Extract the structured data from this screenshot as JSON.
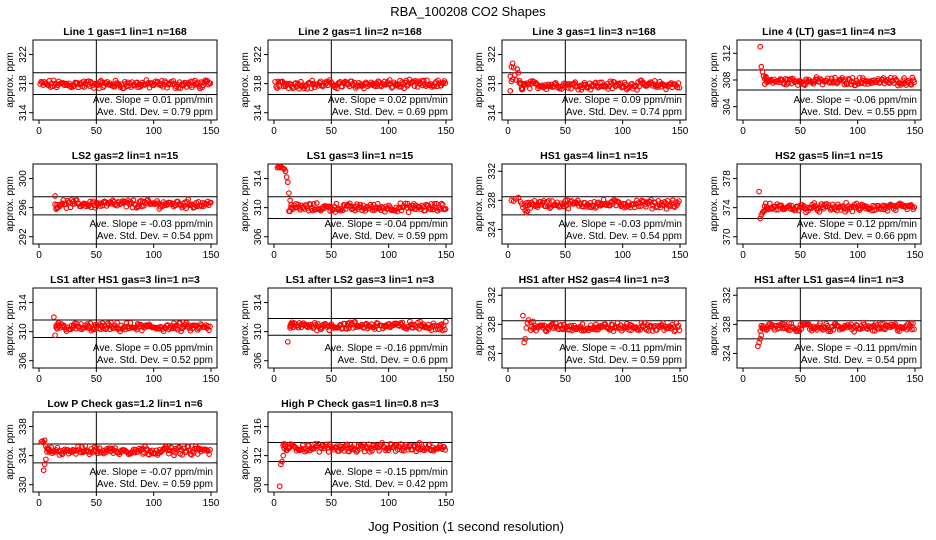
{
  "title": "RBA_100208  CO2 Shapes",
  "xlabel": "Jog Position (1 second resolution)",
  "ylabel": "approx. ppm",
  "slope_label": "Ave. Slope =",
  "slope_unit": "ppm/min",
  "std_label": "Ave. Std. Dev. =",
  "std_unit": "ppm",
  "point_color": "#ff0000",
  "chart_data": [
    {
      "type": "scatter",
      "title": "Line 1 gas=1 lin=1 n=168",
      "xlim": [
        0,
        150
      ],
      "xticks": [
        0,
        50,
        100,
        150
      ],
      "ylim": [
        313,
        324
      ],
      "yticks": [
        314,
        318,
        322
      ],
      "hlines": [
        319.5,
        316.5
      ],
      "vline": 50,
      "baseline": 317.9,
      "slope": "0.01",
      "std": "0.79",
      "lead": []
    },
    {
      "type": "scatter",
      "title": "Line 2 gas=1 lin=2 n=168",
      "xlim": [
        0,
        150
      ],
      "xticks": [
        0,
        50,
        100,
        150
      ],
      "ylim": [
        313,
        324
      ],
      "yticks": [
        314,
        318,
        322
      ],
      "hlines": [
        319.5,
        316.5
      ],
      "vline": 50,
      "baseline": 317.9,
      "slope": "0.02",
      "std": "0.69",
      "lead": []
    },
    {
      "type": "scatter",
      "title": "Line 3 gas=1 lin=3 n=168",
      "xlim": [
        0,
        150
      ],
      "xticks": [
        0,
        50,
        100,
        150
      ],
      "ylim": [
        313,
        324
      ],
      "yticks": [
        314,
        318,
        322
      ],
      "hlines": [
        319.5,
        316.5
      ],
      "vline": 50,
      "baseline": 317.8,
      "slope": "0.09",
      "std": "0.74",
      "lead": [
        [
          2,
          319
        ],
        [
          3,
          320.3
        ],
        [
          4,
          320.8
        ],
        [
          5,
          320.2
        ],
        [
          6,
          319.2
        ],
        [
          7,
          318.5
        ],
        [
          8,
          320
        ],
        [
          9,
          319.5
        ],
        [
          10,
          318.4
        ],
        [
          11,
          318
        ],
        [
          12,
          317.2
        ],
        [
          3,
          318.3
        ],
        [
          2,
          317
        ],
        [
          4,
          318.6
        ]
      ]
    },
    {
      "type": "scatter",
      "title": "Line 4 (LT) gas=1 lin=4 n=3",
      "xlim": [
        0,
        150
      ],
      "xticks": [
        0,
        50,
        100,
        150
      ],
      "ylim": [
        302,
        314
      ],
      "yticks": [
        304,
        308,
        312
      ],
      "hlines": [
        309.5,
        306.5
      ],
      "vline": 50,
      "baseline": 307.8,
      "slope": "-0.06",
      "std": "0.55",
      "lead": [
        [
          15,
          313
        ],
        [
          16,
          310
        ],
        [
          17,
          309.2
        ],
        [
          18,
          308.6
        ],
        [
          19,
          308.2
        ],
        [
          20,
          308.5
        ],
        [
          21,
          308
        ]
      ]
    },
    {
      "type": "scatter",
      "title": "LS2 gas=2 lin=1 n=15",
      "xlim": [
        0,
        150
      ],
      "xticks": [
        0,
        50,
        100,
        150
      ],
      "ylim": [
        291,
        302
      ],
      "yticks": [
        292,
        296,
        300
      ],
      "hlines": [
        297.5,
        295
      ],
      "vline": 50,
      "baseline": 296.5,
      "slope": "-0.03",
      "std": "0.54",
      "lead": [
        [
          14,
          297.6
        ],
        [
          15,
          295.8
        ],
        [
          16,
          296
        ]
      ]
    },
    {
      "type": "scatter",
      "title": "LS1 gas=3 lin=1 n=15",
      "xlim": [
        0,
        150
      ],
      "xticks": [
        0,
        50,
        100,
        150
      ],
      "ylim": [
        305,
        316
      ],
      "yticks": [
        306,
        310,
        314
      ],
      "hlines": [
        311.5,
        308.5
      ],
      "vline": 50,
      "baseline": 310.0,
      "slope": "-0.04",
      "std": "0.59",
      "lead": [
        [
          3,
          315.5
        ],
        [
          4,
          315.6
        ],
        [
          5,
          315.5
        ],
        [
          6,
          315.6
        ],
        [
          7,
          315.5
        ],
        [
          8,
          315.4
        ],
        [
          9,
          315.3
        ],
        [
          10,
          315
        ],
        [
          11,
          314.2
        ],
        [
          12,
          313.5
        ],
        [
          13,
          312
        ],
        [
          14,
          311
        ],
        [
          15,
          310.4
        ]
      ]
    },
    {
      "type": "scatter",
      "title": "HS1 gas=4 lin=1 n=15",
      "xlim": [
        0,
        150
      ],
      "xticks": [
        0,
        50,
        100,
        150
      ],
      "ylim": [
        322,
        333
      ],
      "yticks": [
        324,
        328,
        332
      ],
      "hlines": [
        328.5,
        326
      ],
      "vline": 50,
      "baseline": 327.5,
      "slope": "-0.03",
      "std": "0.54",
      "lead": [
        [
          3,
          328
        ],
        [
          5,
          327.9
        ],
        [
          7,
          328.2
        ],
        [
          9,
          328.4
        ],
        [
          11,
          327.8
        ],
        [
          13,
          327
        ],
        [
          15,
          326.6
        ],
        [
          16,
          326.3
        ],
        [
          17,
          326.5
        ],
        [
          12,
          327.5
        ]
      ]
    },
    {
      "type": "scatter",
      "title": "HS2 gas=5 lin=1 n=15",
      "xlim": [
        0,
        150
      ],
      "xticks": [
        0,
        50,
        100,
        150
      ],
      "ylim": [
        369,
        380
      ],
      "yticks": [
        370,
        374,
        378
      ],
      "hlines": [
        375.5,
        372.5
      ],
      "vline": 50,
      "baseline": 374.0,
      "slope": "0.12",
      "std": "0.66",
      "lead": [
        [
          14,
          376.2
        ],
        [
          15,
          372.5
        ],
        [
          16,
          373
        ],
        [
          17,
          373.3
        ],
        [
          18,
          373.5
        ],
        [
          19,
          373.6
        ],
        [
          20,
          373.8
        ]
      ]
    },
    {
      "type": "scatter",
      "title": "LS1 after HS1 gas=3 lin=1 n=3",
      "xlim": [
        0,
        150
      ],
      "xticks": [
        0,
        50,
        100,
        150
      ],
      "ylim": [
        305,
        316
      ],
      "yticks": [
        306,
        310,
        314
      ],
      "hlines": [
        311.6,
        309.2
      ],
      "vline": 50,
      "baseline": 310.6,
      "slope": "0.05",
      "std": "0.52",
      "lead": [
        [
          13,
          312
        ],
        [
          14,
          309.5
        ],
        [
          15,
          310.8
        ],
        [
          16,
          311
        ],
        [
          17,
          311.2
        ]
      ]
    },
    {
      "type": "scatter",
      "title": "LS1 after LS2 gas=3 lin=1 n=3",
      "xlim": [
        0,
        150
      ],
      "xticks": [
        0,
        50,
        100,
        150
      ],
      "ylim": [
        305,
        316
      ],
      "yticks": [
        306,
        310,
        314
      ],
      "hlines": [
        311.8,
        309.5
      ],
      "vline": 50,
      "baseline": 310.8,
      "slope": "-0.16",
      "std": "0.6",
      "lead": [
        [
          12,
          308.6
        ],
        [
          14,
          310.5
        ],
        [
          15,
          310.8
        ],
        [
          16,
          311
        ]
      ]
    },
    {
      "type": "scatter",
      "title": "HS1 after HS2 gas=4 lin=1 n=3",
      "xlim": [
        0,
        150
      ],
      "xticks": [
        0,
        50,
        100,
        150
      ],
      "ylim": [
        322,
        333
      ],
      "yticks": [
        324,
        328,
        332
      ],
      "hlines": [
        328.5,
        326
      ],
      "vline": 50,
      "baseline": 327.6,
      "slope": "-0.11",
      "std": "0.59",
      "lead": [
        [
          13,
          329.2
        ],
        [
          14,
          325.5
        ],
        [
          15,
          326
        ],
        [
          16,
          327.5
        ],
        [
          17,
          328.2
        ],
        [
          18,
          328.6
        ],
        [
          20,
          328.3
        ],
        [
          22,
          328.4
        ]
      ]
    },
    {
      "type": "scatter",
      "title": "HS1 after LS1 gas=4 lin=1 n=3",
      "xlim": [
        0,
        150
      ],
      "xticks": [
        0,
        50,
        100,
        150
      ],
      "ylim": [
        322,
        333
      ],
      "yticks": [
        324,
        328,
        332
      ],
      "hlines": [
        328.5,
        326
      ],
      "vline": 50,
      "baseline": 327.6,
      "slope": "-0.11",
      "std": "0.54",
      "lead": [
        [
          13,
          325
        ],
        [
          14,
          325.5
        ],
        [
          15,
          326
        ],
        [
          16,
          326.5
        ],
        [
          17,
          327.4
        ]
      ]
    },
    {
      "type": "scatter",
      "title": "Low P Check gas=1.2 lin=1 n=6",
      "xlim": [
        0,
        150
      ],
      "xticks": [
        0,
        50,
        100,
        150
      ],
      "ylim": [
        329,
        340
      ],
      "yticks": [
        330,
        334,
        338
      ],
      "hlines": [
        335.6,
        333
      ],
      "vline": 50,
      "baseline": 334.7,
      "slope": "-0.07",
      "std": "0.59",
      "lead": [
        [
          2,
          335.9
        ],
        [
          3,
          336
        ],
        [
          4,
          335.8
        ],
        [
          5,
          336.1
        ],
        [
          6,
          335.3
        ],
        [
          7,
          335
        ],
        [
          4,
          332
        ],
        [
          5,
          332.8
        ],
        [
          6,
          333.5
        ],
        [
          8,
          334.8
        ],
        [
          9,
          334.5
        ]
      ]
    },
    {
      "type": "scatter",
      "title": "High P Check gas=1 lin=0.8 n=3",
      "xlim": [
        0,
        150
      ],
      "xticks": [
        0,
        50,
        100,
        150
      ],
      "ylim": [
        307,
        318
      ],
      "yticks": [
        308,
        312,
        316
      ],
      "hlines": [
        313.8,
        311.2
      ],
      "vline": 50,
      "baseline": 313.1,
      "slope": "-0.15",
      "std": "0.42",
      "lead": [
        [
          5,
          307.8
        ],
        [
          6,
          310.8
        ],
        [
          7,
          311.2
        ],
        [
          8,
          312
        ],
        [
          9,
          313
        ],
        [
          10,
          313.5
        ]
      ]
    }
  ]
}
